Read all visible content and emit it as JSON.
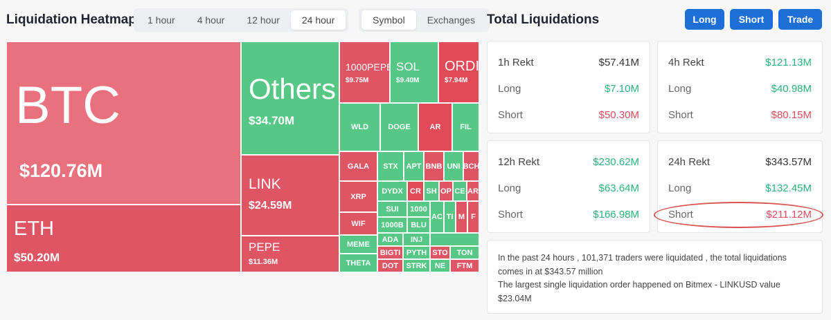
{
  "heatmap": {
    "title": "Liquidation Heatmap",
    "time_options": [
      "1 hour",
      "4 hour",
      "12 hour",
      "24 hour"
    ],
    "active_time": "24 hour",
    "view_options": [
      "Symbol",
      "Exchanges"
    ],
    "active_view": "Symbol",
    "tiles": {
      "btc": {
        "name": "BTC",
        "value": "$120.76M"
      },
      "eth": {
        "name": "ETH",
        "value": "$50.20M"
      },
      "others": {
        "name": "Others",
        "value": "$34.70M"
      },
      "link": {
        "name": "LINK",
        "value": "$24.59M"
      },
      "pepe": {
        "name": "PEPE",
        "value": "$11.36M"
      },
      "pepe1000": {
        "name": "1000PEPE",
        "value": "$9.75M"
      },
      "sol": {
        "name": "SOL",
        "value": "$9.40M"
      },
      "ordi": {
        "name": "ORDI",
        "value": "$7.94M"
      },
      "wld": "WLD",
      "doge": "DOGE",
      "ar": "AR",
      "fil": "FIL",
      "gala": "GALA",
      "stx": "STX",
      "apt": "APT",
      "bnb": "BNB",
      "uni": "UNI",
      "bch": "BCH",
      "xrp": "XRP",
      "dydx": "DYDX",
      "crv": "CR",
      "sh": "SH",
      "op": "OP",
      "ce": "CE",
      "ar2": "AR",
      "wif": "WIF",
      "sui": "SUI",
      "k1000": "1000",
      "ac": "AC",
      "ti": "TI",
      "m": "M",
      "f": "F",
      "meme": "MEME",
      "bonk": "1000B",
      "blur": "BLU",
      "ada": "ADA",
      "inj": "INJ",
      "theta": "THETA",
      "bigt": "BIGTI",
      "pyth": "PYTH",
      "sto": "STO",
      "dot": "DOT",
      "strk": "STRK",
      "ne": "NE",
      "ton": "TON",
      "ftm": "FTM"
    }
  },
  "totals": {
    "title": "Total Liquidations",
    "buttons": {
      "long": "Long",
      "short": "Short",
      "trade": "Trade"
    },
    "cards": {
      "h1": {
        "label": "1h Rekt",
        "total": "$57.41M",
        "long_label": "Long",
        "long": "$7.10M",
        "short_label": "Short",
        "short": "$50.30M"
      },
      "h4": {
        "label": "4h Rekt",
        "total": "$121.13M",
        "long_label": "Long",
        "long": "$40.98M",
        "short_label": "Short",
        "short": "$80.15M"
      },
      "h12": {
        "label": "12h Rekt",
        "total": "$230.62M",
        "long_label": "Long",
        "long": "$63.64M",
        "short_label": "Short",
        "short": "$166.98M"
      },
      "h24": {
        "label": "24h Rekt",
        "total": "$343.57M",
        "long_label": "Long",
        "long": "$132.45M",
        "short_label": "Short",
        "short": "$211.12M"
      }
    },
    "summary": {
      "line1": "In the past 24 hours , 101,371 traders were liquidated , the total liquidations comes in at $343.57 million",
      "line2": "The largest single liquidation order happened on Bitmex - LINKUSD value $23.04M"
    }
  },
  "colors": {
    "long_green": "#2bb27a",
    "short_red": "#e04a5a",
    "accent_blue": "#1d6fd6"
  }
}
